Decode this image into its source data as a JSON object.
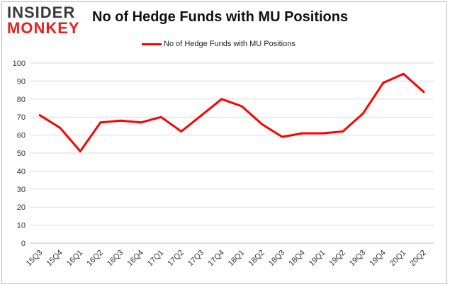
{
  "logo": {
    "line1": "INSIDER",
    "line2": "MONKEY"
  },
  "chart_data": {
    "type": "line",
    "title": "No of Hedge Funds with MU Positions",
    "xlabel": "",
    "ylabel": "",
    "categories": [
      "15Q3",
      "15Q4",
      "16Q1",
      "16Q2",
      "16Q3",
      "16Q4",
      "17Q1",
      "17Q2",
      "17Q3",
      "17Q4",
      "18Q1",
      "18Q2",
      "18Q3",
      "18Q4",
      "19Q1",
      "19Q2",
      "19Q3",
      "19Q4",
      "20Q1",
      "20Q2"
    ],
    "series": [
      {
        "name": "No of Hedge Funds with MU Positions",
        "color": "#ff0000",
        "values": [
          71,
          64,
          51,
          67,
          68,
          67,
          70,
          62,
          71,
          80,
          76,
          66,
          59,
          61,
          61,
          62,
          72,
          89,
          94,
          84
        ]
      }
    ],
    "ylim": [
      0,
      100
    ],
    "yticks": [
      0,
      10,
      20,
      30,
      40,
      50,
      60,
      70,
      80,
      90,
      100
    ],
    "grid": true,
    "legend_position": "top-center"
  }
}
